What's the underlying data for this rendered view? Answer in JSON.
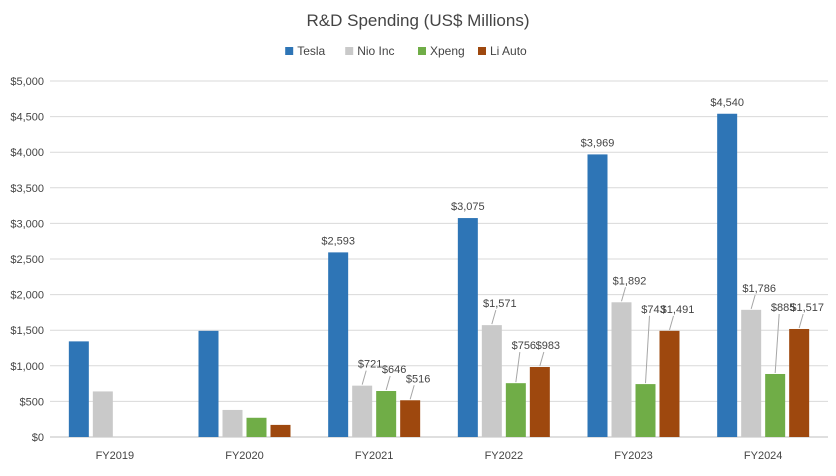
{
  "chart_data": {
    "type": "bar",
    "title": "R&D Spending (US$ Millions)",
    "categories": [
      "FY2019",
      "FY2020",
      "FY2021",
      "FY2022",
      "FY2023",
      "FY2024"
    ],
    "series": [
      {
        "name": "Tesla",
        "color": "#2e75b6",
        "values": [
          1343,
          1491,
          2593,
          3075,
          3969,
          4540
        ],
        "labels": [
          null,
          null,
          "$2,593",
          "$3,075",
          "$3,969",
          "$4,540"
        ]
      },
      {
        "name": "Nio Inc",
        "color": "#c9c9c9",
        "values": [
          640,
          380,
          721,
          1571,
          1892,
          1786
        ],
        "labels": [
          null,
          null,
          "$721",
          "$1,571",
          "$1,892",
          "$1,786"
        ]
      },
      {
        "name": "Xpeng",
        "color": "#70ad47",
        "values": [
          null,
          270,
          646,
          756,
          743,
          885
        ],
        "labels": [
          null,
          null,
          "$646",
          "$756",
          "$743",
          "$885"
        ]
      },
      {
        "name": "Li Auto",
        "color": "#9e480e",
        "values": [
          null,
          170,
          516,
          983,
          1491,
          1517
        ],
        "labels": [
          null,
          null,
          "$516",
          "$983",
          "$1,491",
          "$1,517"
        ]
      }
    ],
    "ylim": [
      0,
      5000
    ],
    "y_ticks": [
      "$0",
      "$500",
      "$1,000",
      "$1,500",
      "$2,000",
      "$2,500",
      "$3,000",
      "$3,500",
      "$4,000",
      "$4,500",
      "$5,000"
    ],
    "legend_position": "top",
    "grid": true
  }
}
